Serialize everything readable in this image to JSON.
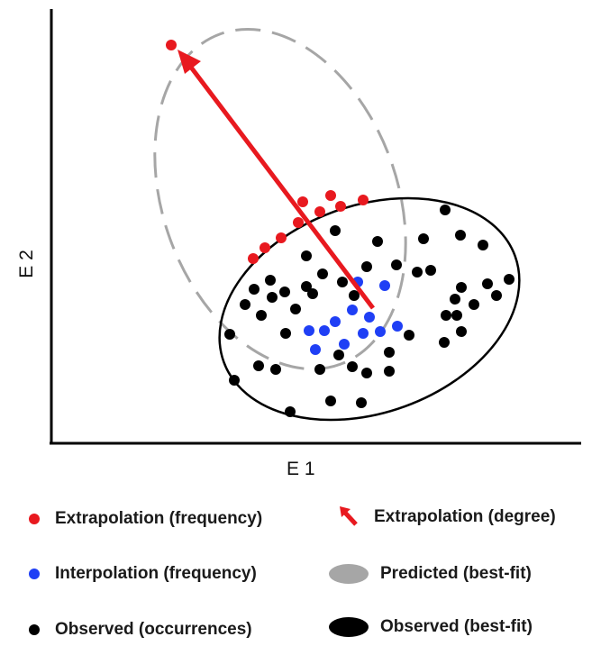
{
  "chart_data": {
    "type": "scatter",
    "xlabel": "E 1",
    "ylabel": "E 2",
    "series": [
      {
        "name": "Extrapolation (frequency)",
        "color": "#e8191f",
        "points": [
          [
            190,
            50
          ],
          [
            281,
            287
          ],
          [
            294,
            275
          ],
          [
            312,
            264
          ],
          [
            331,
            247
          ],
          [
            336,
            224
          ],
          [
            355,
            235
          ],
          [
            367,
            217
          ],
          [
            378,
            229
          ],
          [
            403,
            222
          ]
        ]
      },
      {
        "name": "Interpolation (frequency)",
        "color": "#1f3ff5",
        "points": [
          [
            397,
            313
          ],
          [
            427,
            317
          ],
          [
            391,
            344
          ],
          [
            410,
            352
          ],
          [
            372,
            357
          ],
          [
            343,
            367
          ],
          [
            360,
            367
          ],
          [
            350,
            388
          ],
          [
            382,
            382
          ],
          [
            403,
            370
          ],
          [
            422,
            368
          ],
          [
            441,
            362
          ]
        ]
      },
      {
        "name": "Observed (occurrences)",
        "color": "#000000",
        "points": [
          [
            494,
            233
          ],
          [
            372,
            256
          ],
          [
            419,
            268
          ],
          [
            470,
            265
          ],
          [
            511,
            261
          ],
          [
            536,
            272
          ],
          [
            340,
            284
          ],
          [
            440,
            294
          ],
          [
            463,
            302
          ],
          [
            478,
            300
          ],
          [
            300,
            311
          ],
          [
            282,
            321
          ],
          [
            316,
            324
          ],
          [
            302,
            330
          ],
          [
            340,
            318
          ],
          [
            380,
            313
          ],
          [
            407,
            296
          ],
          [
            358,
            304
          ],
          [
            272,
            338
          ],
          [
            290,
            350
          ],
          [
            328,
            343
          ],
          [
            347,
            326
          ],
          [
            393,
            328
          ],
          [
            512,
            319
          ],
          [
            541,
            315
          ],
          [
            565,
            310
          ],
          [
            505,
            332
          ],
          [
            551,
            328
          ],
          [
            526,
            338
          ],
          [
            495,
            350
          ],
          [
            507,
            350
          ],
          [
            255,
            371
          ],
          [
            317,
            370
          ],
          [
            376,
            394
          ],
          [
            454,
            372
          ],
          [
            493,
            380
          ],
          [
            512,
            368
          ],
          [
            287,
            406
          ],
          [
            306,
            410
          ],
          [
            355,
            410
          ],
          [
            391,
            407
          ],
          [
            407,
            414
          ],
          [
            432,
            391
          ],
          [
            260,
            422
          ],
          [
            367,
            445
          ],
          [
            401,
            447
          ],
          [
            432,
            412
          ],
          [
            322,
            457
          ]
        ]
      }
    ],
    "legend": {
      "extrap_freq": "Extrapolation (frequency)",
      "interp_freq": "Interpolation (frequency)",
      "observed_occ": "Observed (occurrences)",
      "extrap_degree": "Extrapolation (degree)",
      "predicted_fit": "Predicted (best-fit)",
      "observed_fit": "Observed (best-fit)"
    },
    "colors": {
      "extrapolation": "#e8191f",
      "interpolation": "#1f3ff5",
      "observed": "#000000",
      "predicted": "#a6a6a6"
    },
    "grid": false
  }
}
